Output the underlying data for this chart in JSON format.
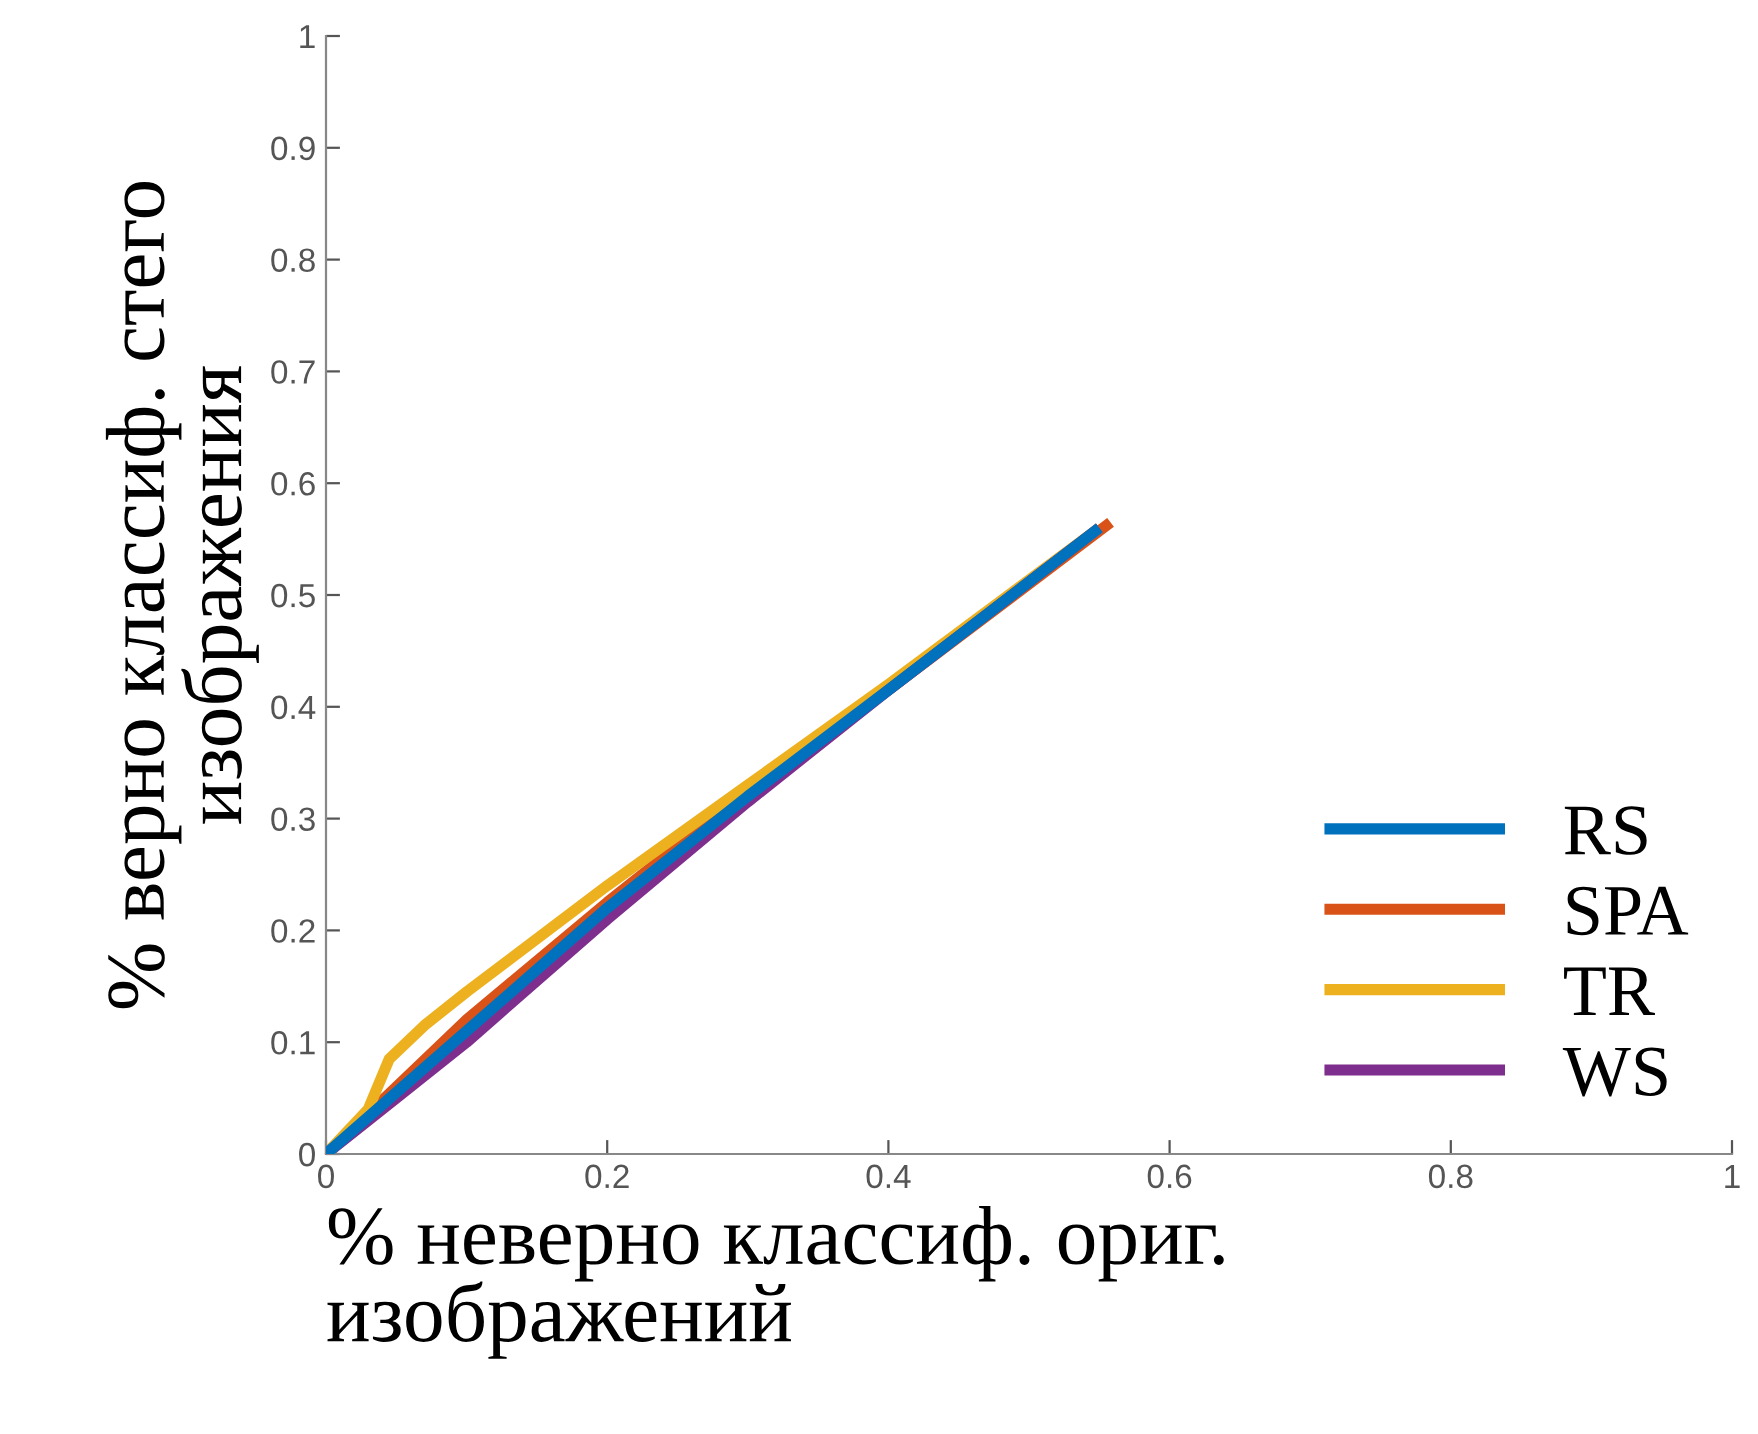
{
  "chart_data": {
    "type": "line",
    "xlabel": "% неверно классиф. ориг.\nизображений",
    "ylabel": "% верно классиф. стего\nизображения",
    "xlim": [
      0,
      1
    ],
    "ylim": [
      0,
      1
    ],
    "xticks": [
      0,
      0.2,
      0.4,
      0.6,
      0.8,
      1
    ],
    "yticks": [
      0,
      0.1,
      0.2,
      0.3,
      0.4,
      0.5,
      0.6,
      0.7,
      0.8,
      0.9,
      1
    ],
    "grid": false,
    "legend": "bottom right",
    "marker": "none",
    "line_style": "solid",
    "series": [
      {
        "name": "RS",
        "color": "#0072bd",
        "x": [
          0,
          0.05,
          0.1,
          0.2,
          0.3,
          0.4,
          0.55
        ],
        "values": [
          0,
          0.055,
          0.11,
          0.22,
          0.32,
          0.415,
          0.56
        ]
      },
      {
        "name": "SPA",
        "color": "#d95319",
        "x": [
          0,
          0.05,
          0.1,
          0.2,
          0.3,
          0.4,
          0.558
        ],
        "values": [
          0,
          0.06,
          0.12,
          0.225,
          0.325,
          0.415,
          0.565
        ]
      },
      {
        "name": "TR",
        "color": "#edb120",
        "x": [
          0,
          0.03,
          0.045,
          0.07,
          0.1,
          0.2,
          0.3,
          0.4,
          0.55
        ],
        "values": [
          0,
          0.04,
          0.085,
          0.115,
          0.145,
          0.24,
          0.33,
          0.42,
          0.56
        ]
      },
      {
        "name": "WS",
        "color": "#7e2f8e",
        "x": [
          0,
          0.05,
          0.1,
          0.2,
          0.3,
          0.4,
          0.55
        ],
        "values": [
          0,
          0.05,
          0.1,
          0.21,
          0.315,
          0.415,
          0.56
        ]
      }
    ]
  }
}
